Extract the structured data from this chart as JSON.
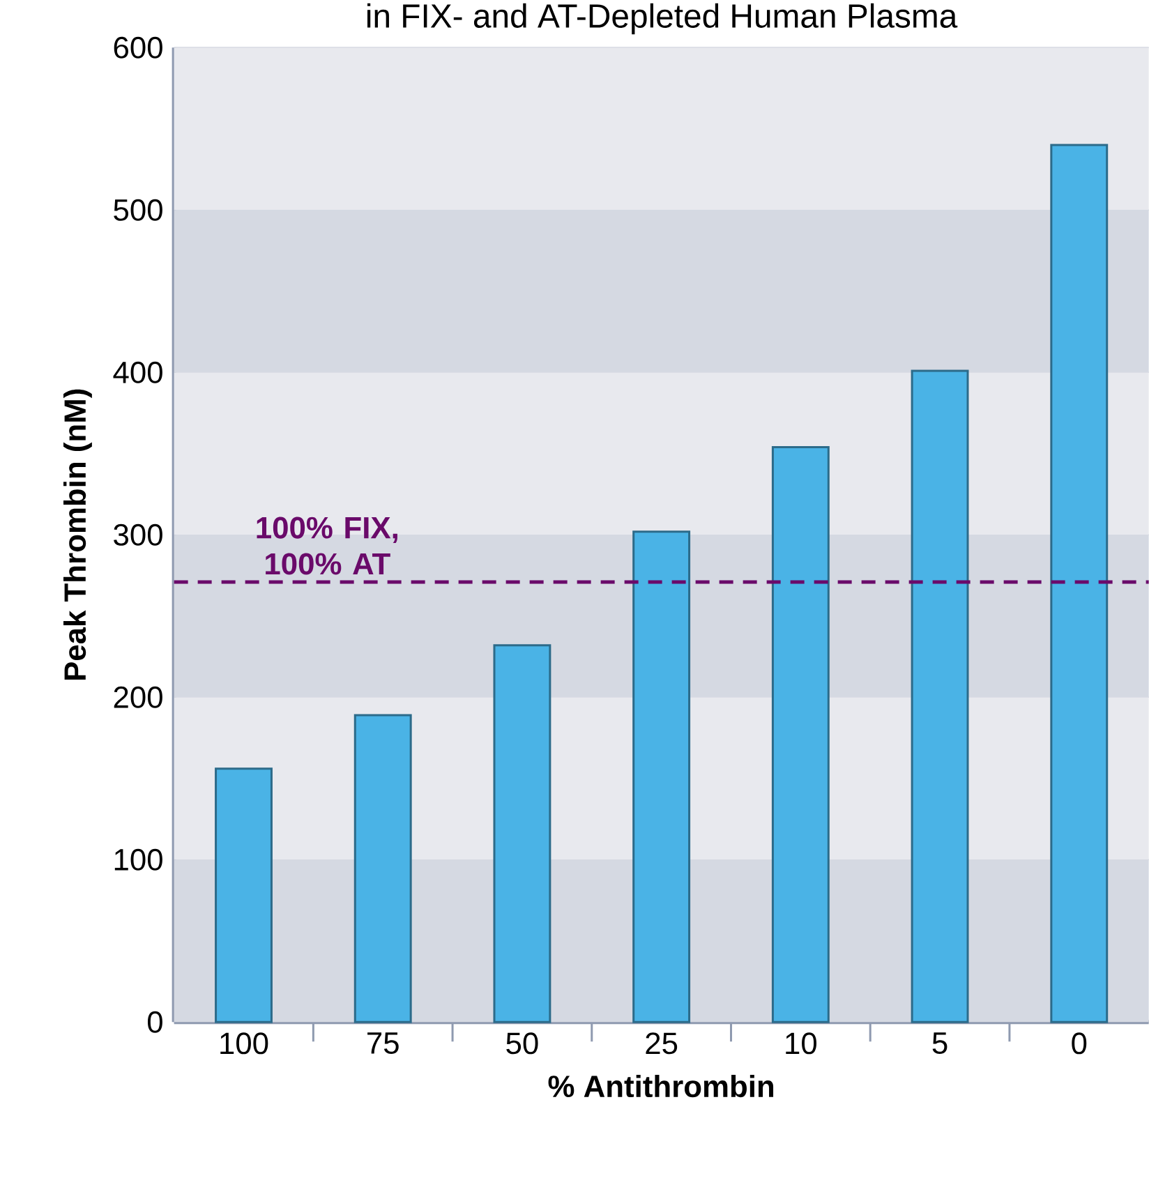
{
  "chart_data": {
    "type": "bar",
    "title": "in FIX- and AT-Depleted Human Plasma",
    "xlabel": "% Antithrombin",
    "ylabel": "Peak Thrombin (nM)",
    "categories": [
      "100",
      "75",
      "50",
      "25",
      "10",
      "5",
      "0"
    ],
    "values": [
      156,
      189,
      232,
      302,
      354,
      401,
      540
    ],
    "color": "#4ab3e6",
    "ylim": [
      0,
      600
    ],
    "yticks": [
      0,
      100,
      200,
      300,
      400,
      500,
      600
    ],
    "grid": "y",
    "ref_lines": [
      {
        "axis": "y",
        "value": 271,
        "label": "100% FIX, 100% AT",
        "color": "#6a0a6a",
        "line_style": "dashed"
      }
    ]
  }
}
